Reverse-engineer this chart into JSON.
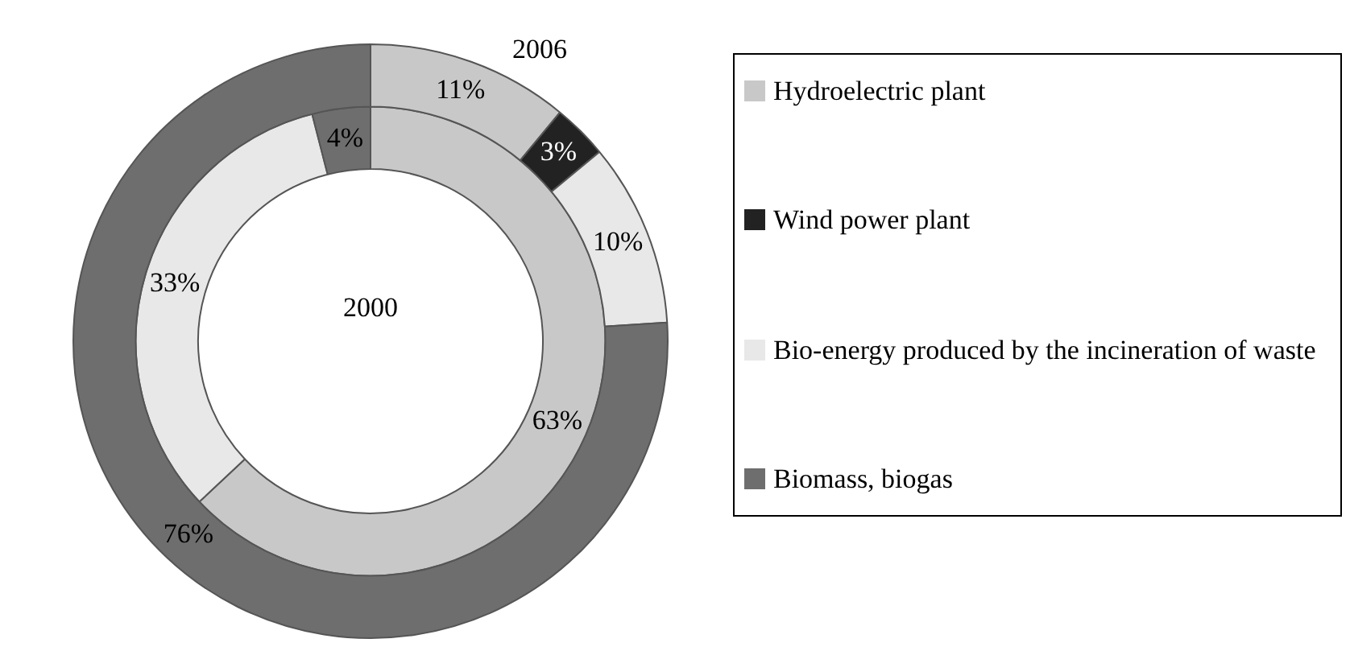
{
  "chart_data": {
    "type": "donut",
    "categories": [
      "Hydroelectric plant",
      "Wind power plant",
      "Bio-energy produced by the incineration of waste",
      "Biomass, biogas"
    ],
    "colors": [
      "#c8c8c8",
      "#222222",
      "#e8e8e8",
      "#6e6e6e"
    ],
    "series": [
      {
        "name": "2006",
        "values": [
          11,
          3,
          10,
          76
        ],
        "value_labels": [
          "11%",
          "3%",
          "10%",
          "76%"
        ]
      },
      {
        "name": "2000",
        "values": [
          63,
          0,
          33,
          4
        ],
        "value_labels": [
          "63%",
          null,
          "33%",
          "4%"
        ]
      }
    ],
    "legend": "right"
  }
}
